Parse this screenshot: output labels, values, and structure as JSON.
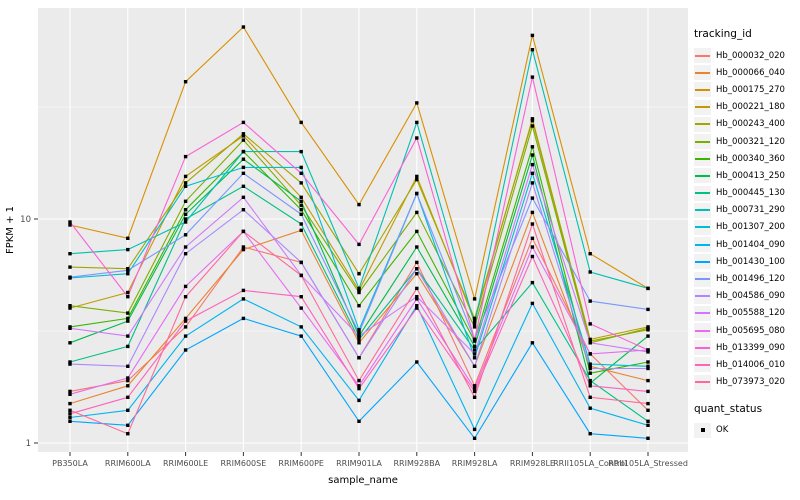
{
  "figure": {
    "background": "#FFFFFF",
    "panel_background": "#EBEBEB",
    "grid_color": "#FFFFFF",
    "axis_text_color": "#4D4D4D",
    "axis_title_color": "#000000",
    "tick_color": "#333333",
    "point_color": "#000000",
    "legend_key_background": "#F2F2F2"
  },
  "chart_data": {
    "type": "line",
    "title": "",
    "xlabel": "sample_name",
    "ylabel": "FPKM + 1",
    "y_scale": "log10",
    "grid": true,
    "legend_position": "right",
    "legend_title": "tracking_id",
    "y_tick_labels": [
      "1",
      "10"
    ],
    "y_tick_values": [
      1,
      10
    ],
    "y_minor_values": [
      3.162,
      31.62
    ],
    "ylim": [
      0.91,
      87
    ],
    "categories": [
      "PB350LA",
      "RRIM600LA",
      "RRIM600LE",
      "RRIM600SE",
      "RRIM600PE",
      "RRIM901LA",
      "RRIM928BA",
      "RRIM928LA",
      "RRIM928LE",
      "RRII105LA_Control",
      "RRII105LA_Stressed"
    ],
    "marker_legend": {
      "title": "quant_status",
      "items": [
        "OK"
      ],
      "marker": "black-square"
    },
    "series": [
      {
        "name": "Hb_000032_020",
        "color": "#F8766D",
        "values": [
          1.7,
          1.9,
          3.3,
          7.5,
          6.4,
          2.4,
          6.4,
          1.8,
          8.2,
          2.5,
          1.4
        ]
      },
      {
        "name": "Hb_000066_040",
        "color": "#EA8331",
        "values": [
          1.5,
          1.8,
          3.6,
          7.3,
          8.9,
          2.8,
          5.7,
          2.2,
          10.7,
          2.2,
          1.9
        ]
      },
      {
        "name": "Hb_000175_270",
        "color": "#D89000",
        "values": [
          9.4,
          8.2,
          41,
          72,
          27,
          11.6,
          33,
          4.4,
          66,
          7.0,
          4.9
        ]
      },
      {
        "name": "Hb_000221_180",
        "color": "#C09B00",
        "values": [
          4.0,
          4.7,
          15.5,
          23.5,
          12.5,
          4.8,
          15.5,
          3.5,
          28,
          2.9,
          3.3
        ]
      },
      {
        "name": "Hb_000243_400",
        "color": "#A3A500",
        "values": [
          6.1,
          6.0,
          14.5,
          24,
          14.5,
          5.7,
          15,
          3.6,
          27.5,
          2.85,
          3.2
        ]
      },
      {
        "name": "Hb_000321_120",
        "color": "#7CAE00",
        "values": [
          4.1,
          3.8,
          12,
          22.5,
          11.5,
          4.7,
          10.7,
          3.3,
          26,
          2.8,
          3.25
        ]
      },
      {
        "name": "Hb_000340_360",
        "color": "#39B600",
        "values": [
          3.3,
          3.6,
          11,
          20,
          11,
          4.1,
          8.8,
          2.85,
          21,
          2.05,
          2.3
        ]
      },
      {
        "name": "Hb_000413_250",
        "color": "#00BB4E",
        "values": [
          2.8,
          3.5,
          10.5,
          18.5,
          12,
          3.0,
          7.5,
          2.7,
          19.3,
          1.85,
          3.0
        ]
      },
      {
        "name": "Hb_000445_130",
        "color": "#00C087",
        "values": [
          2.3,
          2.7,
          10,
          14,
          9.5,
          2.9,
          6.0,
          2.6,
          5.2,
          1.9,
          1.25
        ]
      },
      {
        "name": "Hb_000731_290",
        "color": "#00C0B2",
        "values": [
          7.0,
          7.3,
          9.7,
          20,
          20,
          4.9,
          27,
          3.4,
          57,
          5.8,
          4.9
        ]
      },
      {
        "name": "Hb_001307_200",
        "color": "#00BDD3",
        "values": [
          5.45,
          5.7,
          14,
          17,
          17,
          3.2,
          13,
          2.4,
          16,
          2.25,
          2.2
        ]
      },
      {
        "name": "Hb_001404_090",
        "color": "#00B4EF",
        "values": [
          1.3,
          1.4,
          3.0,
          4.4,
          3.3,
          1.55,
          4.1,
          1.15,
          4.2,
          1.43,
          1.2
        ]
      },
      {
        "name": "Hb_001430_100",
        "color": "#00A5FF",
        "values": [
          1.25,
          1.2,
          2.6,
          3.6,
          3.0,
          1.25,
          2.3,
          1.05,
          2.8,
          1.1,
          1.05
        ]
      },
      {
        "name": "Hb_001496_120",
        "color": "#7997FF",
        "values": [
          5.5,
          5.9,
          8.5,
          16,
          10.5,
          3.1,
          13,
          2.9,
          12.4,
          4.3,
          3.95
        ]
      },
      {
        "name": "Hb_004586_090",
        "color": "#AC88FF",
        "values": [
          2.25,
          2.2,
          7.0,
          11,
          6.4,
          2.4,
          6.0,
          2.2,
          14.5,
          2.15,
          2.15
        ]
      },
      {
        "name": "Hb_005588_120",
        "color": "#CF78FF",
        "values": [
          3.25,
          3.0,
          7.5,
          12.5,
          5.6,
          3.0,
          4.5,
          2.5,
          17.5,
          2.8,
          2.55
        ]
      },
      {
        "name": "Hb_005695_080",
        "color": "#E76BF3",
        "values": [
          1.65,
          1.95,
          5.0,
          8.8,
          4.0,
          1.8,
          4.4,
          1.75,
          7.5,
          2.5,
          2.6
        ]
      },
      {
        "name": "Hb_013399_090",
        "color": "#FB61D7",
        "values": [
          9.7,
          4.5,
          19,
          27,
          16,
          7.7,
          23,
          2.9,
          43,
          3.4,
          2.6
        ]
      },
      {
        "name": "Hb_014006_010",
        "color": "#FF62BC",
        "values": [
          1.35,
          1.6,
          3.5,
          4.8,
          4.5,
          1.75,
          4.0,
          1.7,
          6.8,
          1.8,
          1.7
        ]
      },
      {
        "name": "Hb_073973_020",
        "color": "#FF6A98",
        "values": [
          1.4,
          1.1,
          4.5,
          8.8,
          5.6,
          1.9,
          4.9,
          1.6,
          9.5,
          1.6,
          1.5
        ]
      }
    ]
  }
}
